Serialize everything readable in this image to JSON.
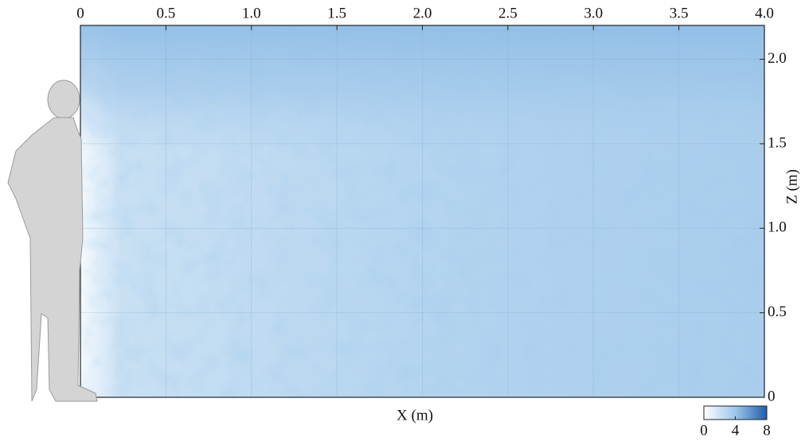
{
  "chart_data": {
    "type": "contour",
    "xlabel": "X (m)",
    "ylabel": "Z (m)",
    "xlim": [
      0,
      4
    ],
    "ylim": [
      0,
      2.2
    ],
    "xticks": [
      0,
      0.5,
      {
        "value": 1,
        "label": "1.0"
      },
      1.5,
      {
        "value": 2,
        "label": "2.0"
      },
      2.5,
      {
        "value": 3,
        "label": "3.0"
      },
      3.5,
      {
        "value": 4,
        "label": "4.0"
      }
    ],
    "yticks": [
      0,
      0.5,
      {
        "value": 1,
        "label": "1.0"
      },
      1.5,
      {
        "value": 2,
        "label": "2.0"
      }
    ],
    "grid": true,
    "colorbar": {
      "lim": [
        0,
        8
      ],
      "ticks": [
        0,
        4,
        8
      ],
      "colors": [
        "#ffffff",
        "#9cc6ea",
        "#1f5fae"
      ]
    }
  }
}
